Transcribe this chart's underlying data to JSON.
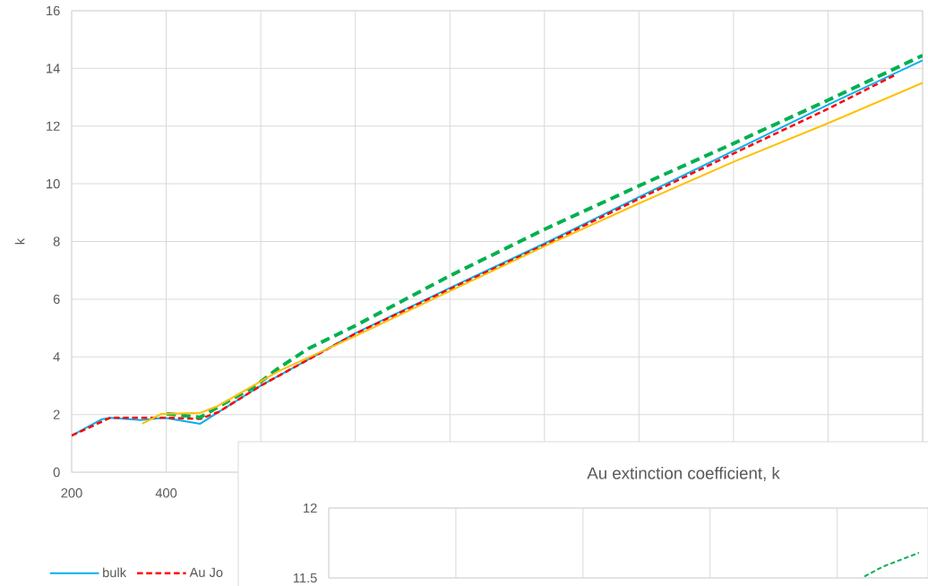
{
  "chart_data": [
    {
      "type": "line",
      "ylabel": "k",
      "xlim": [
        200,
        2000
      ],
      "ylim": [
        0,
        16
      ],
      "xticks": [
        200,
        400,
        {
          "value": 600,
          "label": null
        },
        {
          "value": 800,
          "label": null
        },
        {
          "value": 1000,
          "label": null
        },
        {
          "value": 1200,
          "label": null
        },
        {
          "value": 1400,
          "label": null
        },
        {
          "value": 1600,
          "label": null
        },
        {
          "value": 1800,
          "label": null
        },
        {
          "value": 2000,
          "label": null
        }
      ],
      "yticks": [
        0,
        2,
        4,
        6,
        8,
        10,
        12,
        14,
        16
      ],
      "grid": true,
      "legend": "bottom",
      "marker": "none",
      "series": [
        {
          "name": "bulk",
          "color": "#00b0f0",
          "line_style": "solid",
          "x": [
            200,
            263,
            282,
            346,
            396,
            472,
            510,
            600,
            700,
            800,
            1000,
            1200,
            1400,
            1600,
            1800,
            2000
          ],
          "values": [
            1.27,
            1.83,
            1.89,
            1.81,
            1.89,
            1.68,
            2.08,
            3.0,
            3.9,
            4.82,
            6.39,
            7.93,
            9.54,
            11.14,
            12.74,
            14.28
          ]
        },
        {
          "name": "Au Jo",
          "color": "#ff0000",
          "line_style": "dashed",
          "x": [
            200,
            282,
            396,
            472,
            510,
            600,
            700,
            800,
            1000,
            1200,
            1400,
            1600,
            1800,
            1945
          ],
          "values": [
            1.27,
            1.89,
            1.89,
            1.85,
            2.08,
            3.0,
            3.9,
            4.8,
            6.35,
            7.88,
            9.48,
            11.05,
            12.6,
            13.8
          ]
        },
        {
          "color": "#00b050",
          "line_style": "dashed",
          "x": [
            401,
            472,
            535,
            586,
            637,
            700,
            800,
            1000,
            1200,
            1400,
            1600,
            1800,
            2000
          ],
          "values": [
            2.03,
            1.9,
            2.5,
            2.96,
            3.6,
            4.28,
            5.08,
            6.81,
            8.42,
            9.93,
            11.4,
            12.9,
            14.45
          ]
        },
        {
          "color": "#ffc000",
          "line_style": "solid",
          "x": [
            349,
            390,
            472,
            510,
            637,
            800,
            1000,
            1200,
            1400,
            1600,
            1800,
            2000
          ],
          "values": [
            1.68,
            2.02,
            2.06,
            2.3,
            3.5,
            4.72,
            6.28,
            7.83,
            9.32,
            10.76,
            12.1,
            13.5
          ]
        }
      ]
    },
    {
      "type": "line",
      "title": "Au extinction coefficient, k",
      "categories": [
        null,
        null,
        null,
        null,
        null,
        null,
        null,
        null,
        null,
        null,
        null,
        null,
        null,
        null,
        null,
        null,
        null,
        null,
        null,
        null,
        null,
        null,
        null,
        null,
        null,
        null,
        null,
        null,
        null,
        null,
        null,
        null,
        null
      ],
      "ylim": [
        11.5,
        12
      ],
      "yticks": [
        11.5,
        12
      ],
      "grid": true,
      "marker": "none",
      "series": [
        {
          "color": "#00b050",
          "line_style": "dashed",
          "values": [
            null,
            null,
            null,
            null,
            null,
            null,
            null,
            null,
            null,
            null,
            null,
            null,
            null,
            null,
            null,
            null,
            null,
            null,
            null,
            null,
            null,
            null,
            null,
            null,
            null,
            null,
            null,
            null,
            null,
            11.51,
            11.58,
            11.63,
            11.68
          ]
        }
      ]
    }
  ]
}
